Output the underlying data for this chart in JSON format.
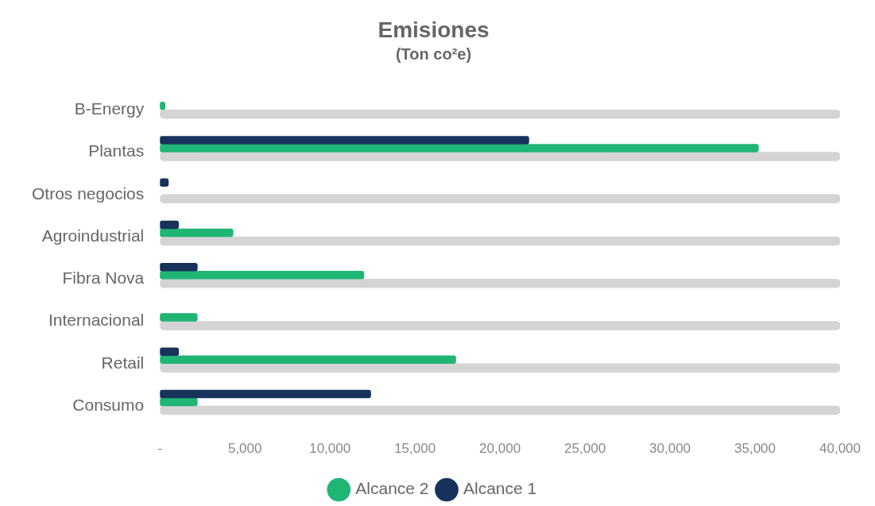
{
  "chart_data": {
    "type": "bar",
    "orientation": "horizontal",
    "title": "Emisiones",
    "subtitle": "(Ton co²e)",
    "categories": [
      "B-Energy",
      "Plantas",
      "Otros negocios",
      "Agroindustrial",
      "Fibra Nova",
      "Internacional",
      "Retail",
      "Consumo"
    ],
    "series": [
      {
        "name": "Alcance 1",
        "color": "#17335c",
        "values": [
          null,
          21700,
          500,
          1100,
          2200,
          null,
          1100,
          12400
        ]
      },
      {
        "name": "Alcance 2",
        "color": "#1fb574",
        "values": [
          300,
          35200,
          null,
          4300,
          12000,
          2200,
          17400,
          2200
        ]
      },
      {
        "color": "#d4d4d4",
        "values": [
          40000,
          40000,
          40000,
          40000,
          40000,
          40000,
          40000,
          40000
        ]
      }
    ],
    "xlim": [
      0,
      40000
    ],
    "xticks": [
      {
        "value": 0,
        "label": "-"
      },
      {
        "value": 5000,
        "label": "5,000"
      },
      {
        "value": 10000,
        "label": "10,000"
      },
      {
        "value": 15000,
        "label": "15,000"
      },
      {
        "value": 20000,
        "label": "20,000"
      },
      {
        "value": 25000,
        "label": "25,000"
      },
      {
        "value": 30000,
        "label": "30,000"
      },
      {
        "value": 35000,
        "label": "35,000"
      },
      {
        "value": 40000,
        "label": "40,000"
      }
    ],
    "grid": false,
    "legend": "bottom"
  }
}
